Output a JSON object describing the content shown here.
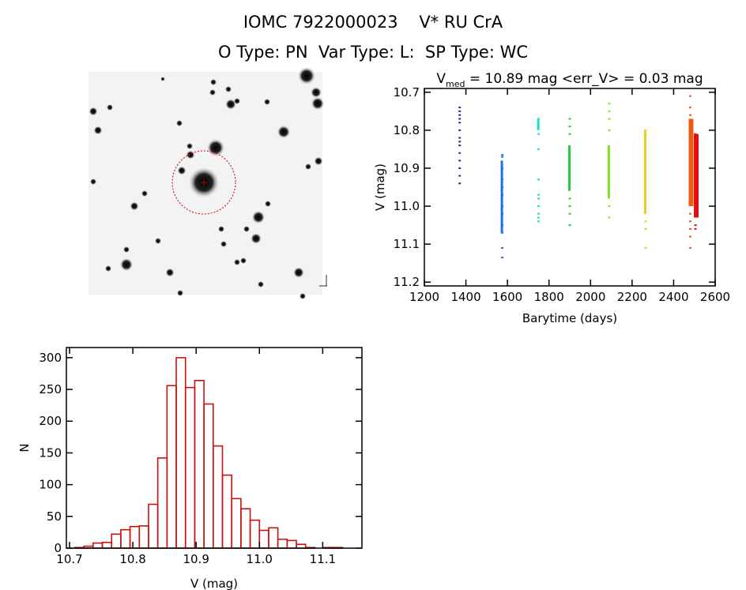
{
  "header": {
    "title": "IOMC 7922000023    V* RU CrA",
    "subtitle": "O Type: PN  Var Type: L:  SP Type: WC"
  },
  "finder_image": {
    "type": "sky-image",
    "marker_color": "#cc0000"
  },
  "chart_data": [
    {
      "type": "scatter",
      "title_main": "V",
      "title_sub": "med",
      "title_rest": " = 10.89 mag <err_V> = 0.03 mag",
      "xlabel": "Barytime (days)",
      "ylabel": "V (mag)",
      "xlim": [
        1200,
        2600
      ],
      "ylim": [
        11.21,
        10.69
      ],
      "y_reversed": true,
      "xticks": [
        "1200",
        "1400",
        "1600",
        "1800",
        "2000",
        "2200",
        "2400",
        "2600"
      ],
      "yticks": [
        "10.7",
        "10.8",
        "10.9",
        "11.0",
        "11.1",
        "11.2"
      ],
      "series": [
        {
          "x": 1370,
          "color": "#4b1a8c",
          "y": [
            10.74,
            10.75,
            10.76,
            10.77,
            10.78,
            10.8,
            10.82,
            10.83,
            10.84,
            10.86,
            10.88,
            10.9,
            10.92,
            10.94
          ]
        },
        {
          "x": 1575,
          "color": "#1f72e8",
          "dense": [
            10.88,
            11.07
          ],
          "y": [
            10.865,
            10.87,
            10.9,
            10.93,
            10.95,
            10.97,
            11.0,
            11.02,
            11.05,
            11.07,
            11.11,
            11.135
          ]
        },
        {
          "x": 1750,
          "color": "#22dcc4",
          "dense": [
            10.77,
            10.8
          ],
          "y": [
            10.77,
            10.79,
            10.81,
            10.85,
            10.93,
            10.97,
            10.98,
            11.0,
            11.02,
            11.03,
            11.04
          ]
        },
        {
          "x": 1900,
          "color": "#26cc3c",
          "dense": [
            10.84,
            10.96
          ],
          "y": [
            10.77,
            10.79,
            10.81,
            10.98,
            11.0,
            11.02,
            11.05
          ]
        },
        {
          "x": 2090,
          "color": "#80e61e",
          "dense": [
            10.84,
            10.98
          ],
          "y": [
            10.73,
            10.75,
            10.77,
            10.8,
            11.0,
            11.03
          ]
        },
        {
          "x": 2265,
          "color": "#e8d020",
          "dense": [
            10.8,
            11.02
          ],
          "y": [
            10.8,
            11.04,
            11.06,
            11.11
          ]
        },
        {
          "x": 2480,
          "color": "#f05a10",
          "dense": [
            10.77,
            11.0
          ],
          "y": [
            10.71,
            10.74,
            10.76,
            11.02,
            11.04,
            11.06,
            11.08,
            11.11
          ]
        },
        {
          "x": 2505,
          "color": "#e01010",
          "dense": [
            10.81,
            11.03
          ],
          "y": [
            10.81,
            11.05,
            11.06
          ]
        }
      ]
    },
    {
      "type": "bar",
      "subtype": "histogram",
      "xlabel": "V (mag)",
      "ylabel": "N",
      "xlim": [
        10.695,
        11.162
      ],
      "ylim": [
        0,
        316
      ],
      "bin_start": 10.708,
      "bin_width": 0.0146,
      "values": [
        1,
        3,
        8,
        9,
        22,
        29,
        34,
        35,
        69,
        142,
        256,
        300,
        253,
        264,
        227,
        161,
        115,
        78,
        62,
        44,
        28,
        32,
        14,
        12,
        6,
        1,
        0,
        1,
        1,
        0
      ],
      "color": "#cc1111",
      "xticks": [
        "10.7",
        "10.8",
        "10.9",
        "11.0",
        "11.1"
      ],
      "yticks": [
        "0",
        "50",
        "100",
        "150",
        "200",
        "250",
        "300"
      ]
    }
  ]
}
